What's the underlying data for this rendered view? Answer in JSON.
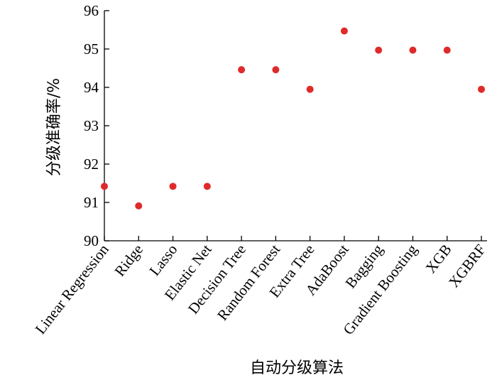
{
  "chart_data": {
    "type": "scatter",
    "categories": [
      "Linear Regression",
      "Ridge",
      "Lasso",
      "Elastic Net",
      "Decision Tree",
      "Random Forest",
      "Extra Tree",
      "AdaBoost",
      "Bagging",
      "Gradient Boosting",
      "XGB",
      "XGBRF"
    ],
    "values": [
      91.42,
      90.91,
      91.42,
      91.42,
      94.46,
      94.46,
      93.95,
      95.47,
      94.97,
      94.97,
      94.97,
      93.95
    ],
    "xlabel": "自动分级算法",
    "ylabel": "分级准确率/%",
    "ylim": [
      90,
      96
    ],
    "yticks": [
      90,
      91,
      92,
      93,
      94,
      95,
      96
    ],
    "grid": false,
    "marker_color": "#e02a2a"
  }
}
